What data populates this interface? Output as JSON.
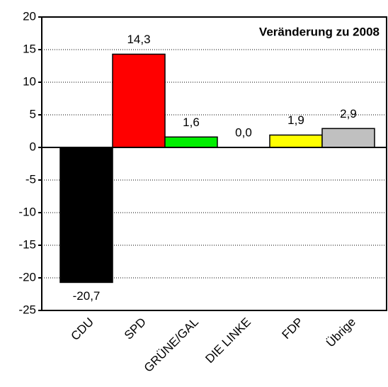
{
  "chart_data": {
    "type": "bar",
    "annotation": "Veränderung zu 2008",
    "categories": [
      "CDU",
      "SPD",
      "GRÜNE/GAL",
      "DIE LINKE",
      "FDP",
      "Übrige"
    ],
    "values": [
      -20.7,
      14.3,
      1.6,
      0.0,
      1.9,
      2.9
    ],
    "value_labels": [
      "-20,7",
      "14,3",
      "1,6",
      "0,0",
      "1,9",
      "2,9"
    ],
    "colors": [
      "#000000",
      "#ff0000",
      "#00ee00",
      "#0000ff",
      "#ffff00",
      "#c0c0c0"
    ],
    "ylim": [
      -25,
      20
    ],
    "yticks": [
      -25,
      -20,
      -15,
      -10,
      -5,
      0,
      5,
      10,
      15,
      20
    ],
    "grid": true
  }
}
